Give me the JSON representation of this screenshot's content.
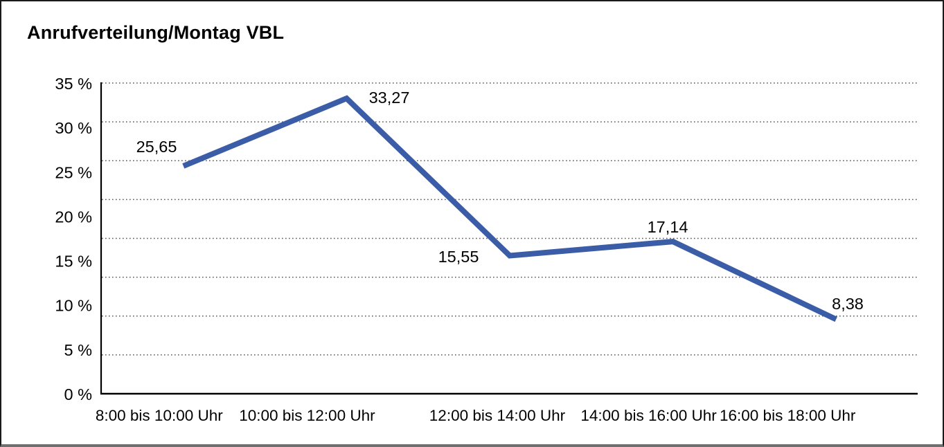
{
  "window": {
    "background": "#ffffff",
    "border_color": "#1a1a1a"
  },
  "chart_data": {
    "type": "line",
    "title": "Anrufverteilung/Montag VBL",
    "categories": [
      "8:00 bis 10:00 Uhr",
      "10:00 bis 12:00 Uhr",
      "12:00 bis 14:00 Uhr",
      "14:00 bis 16:00 Uhr",
      "16:00 bis 18:00 Uhr"
    ],
    "values": [
      25.65,
      33.27,
      15.55,
      17.14,
      8.38
    ],
    "value_labels": [
      "25,65",
      "33,27",
      "15,55",
      "17,14",
      "8,38"
    ],
    "ytick_labels": [
      "0 %",
      "5 %",
      "10 %",
      "15 %",
      "20 %",
      "25 %",
      "30 %",
      "35 %"
    ],
    "ytick_step": 5,
    "ylim": [
      0,
      35
    ],
    "xlabel": "",
    "ylabel": "",
    "legend": "none",
    "grid": true,
    "grid_style": "dotted",
    "grid_divisions": 8,
    "line_color": "#3b5ca6",
    "axis_color": "#000000",
    "grid_color": "#555555",
    "text_color": "#000000"
  }
}
